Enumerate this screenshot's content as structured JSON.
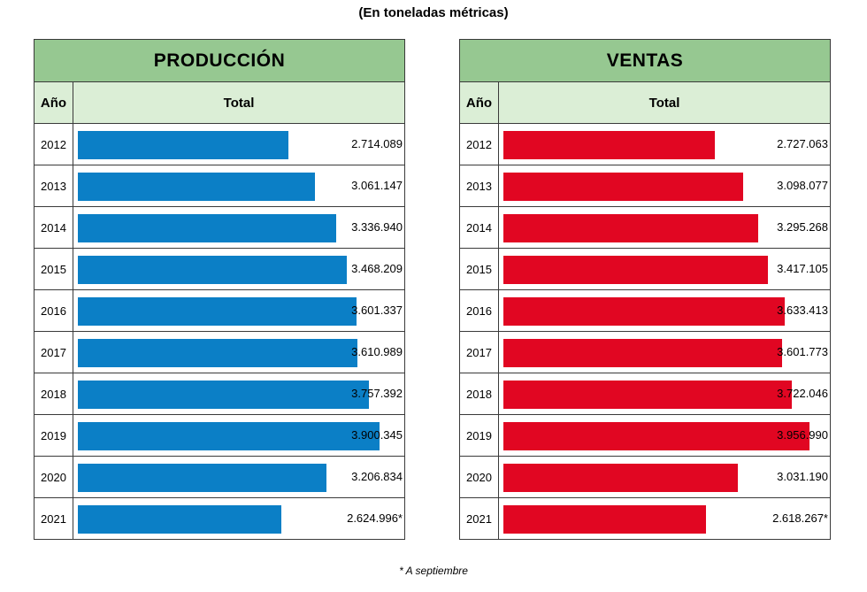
{
  "subtitle": "(En toneladas métricas)",
  "footnote": "* A septiembre",
  "colors": {
    "header_green": "#96c891",
    "subheader_green": "#dbeed6",
    "production_bar": "#0b7fc6",
    "sales_bar": "#e10622"
  },
  "chart_data": [
    {
      "type": "bar",
      "orientation": "horizontal",
      "title": "PRODUCCIÓN",
      "col_year": "Año",
      "col_total": "Total",
      "categories": [
        "2012",
        "2013",
        "2014",
        "2015",
        "2016",
        "2017",
        "2018",
        "2019",
        "2020",
        "2021"
      ],
      "values": [
        2714089,
        3061147,
        3336940,
        3468209,
        3601337,
        3610989,
        3757392,
        3900345,
        3206834,
        2624996
      ],
      "labels": [
        "2.714.089",
        "3.061.147",
        "3.336.940",
        "3.468.209",
        "3.601.337",
        "3.610.989",
        "3.757.392",
        "3.900.345",
        "3.206.834",
        "2.624.996*"
      ],
      "xlim": [
        0,
        4250000
      ]
    },
    {
      "type": "bar",
      "orientation": "horizontal",
      "title": "VENTAS",
      "col_year": "Año",
      "col_total": "Total",
      "categories": [
        "2012",
        "2013",
        "2014",
        "2015",
        "2016",
        "2017",
        "2018",
        "2019",
        "2020",
        "2021"
      ],
      "values": [
        2727063,
        3098077,
        3295268,
        3417105,
        3633413,
        3601773,
        3722046,
        3956990,
        3031190,
        2618267
      ],
      "labels": [
        "2.727.063",
        "3.098.077",
        "3.295.268",
        "3.417.105",
        "3.633.413",
        "3.601.773",
        "3.722.046",
        "3.956.990",
        "3.031.190",
        "2.618.267*"
      ],
      "xlim": [
        0,
        4250000
      ]
    }
  ]
}
